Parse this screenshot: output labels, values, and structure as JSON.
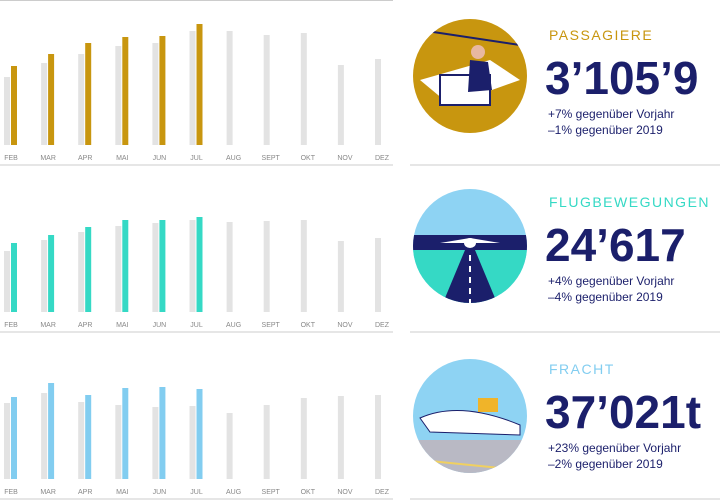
{
  "chart_data": [
    {
      "type": "bar",
      "title": "PASSAGIERE",
      "headline": "3’105’9",
      "annotations": [
        "+7% gegenüber Vorjahr",
        "–1% gegenüber 2019"
      ],
      "categories": [
        "FEB",
        "MAR",
        "APR",
        "MAI",
        "JUN",
        "JUL",
        "AUG",
        "SEPT",
        "OKT",
        "NOV",
        "DEZ"
      ],
      "ylim": [
        0,
        125
      ],
      "series": [
        {
          "color": "#e3e3e3",
          "values": [
            68,
            82,
            91,
            99,
            102,
            114,
            114,
            110,
            112,
            80,
            86
          ]
        },
        {
          "color": "#c8960f",
          "values": [
            79,
            91,
            102,
            108,
            109,
            121,
            null,
            null,
            null,
            null,
            null
          ]
        }
      ]
    },
    {
      "type": "bar",
      "title": "FLUGBEWEGUNGEN",
      "headline": "24’617",
      "annotations": [
        "+4% gegenüber Vorjahr",
        "–4% gegenüber 2019"
      ],
      "categories": [
        "FEB",
        "MAR",
        "APR",
        "MAI",
        "JUN",
        "JUL",
        "AUG",
        "SEPT",
        "OKT",
        "NOV",
        "DEZ"
      ],
      "ylim": [
        0,
        125
      ],
      "series": [
        {
          "color": "#e3e3e3",
          "values": [
            61,
            72,
            80,
            86,
            89,
            92,
            90,
            91,
            92,
            71,
            74
          ]
        },
        {
          "color": "#35d9c5",
          "values": [
            69,
            77,
            85,
            92,
            92,
            95,
            null,
            null,
            null,
            null,
            null
          ]
        }
      ]
    },
    {
      "type": "bar",
      "title": "FRACHT",
      "headline": "37’021t",
      "annotations": [
        "+23% gegenüber Vorjahr",
        "–2% gegenüber 2019"
      ],
      "categories": [
        "FEB",
        "MAR",
        "APR",
        "MAI",
        "JUN",
        "JUL",
        "AUG",
        "SEPT",
        "OKT",
        "NOV",
        "DEZ"
      ],
      "ylim": [
        0,
        125
      ],
      "series": [
        {
          "color": "#e3e3e3",
          "values": [
            76,
            86,
            77,
            74,
            72,
            73,
            66,
            74,
            81,
            83,
            84
          ]
        },
        {
          "color": "#82cdf0",
          "values": [
            82,
            96,
            84,
            91,
            92,
            90,
            null,
            null,
            null,
            null,
            null
          ]
        }
      ]
    }
  ]
}
